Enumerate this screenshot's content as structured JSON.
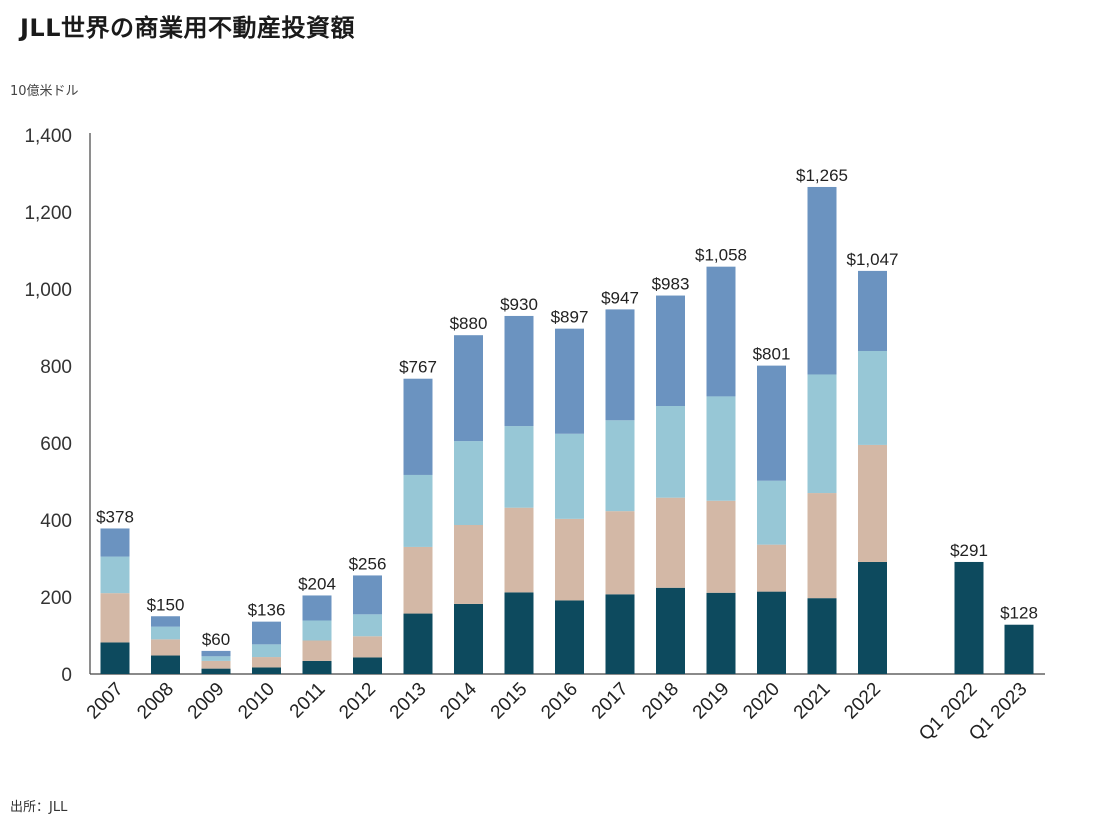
{
  "title": "JLL世界の商業用不動産投資額",
  "unit_label": "10億米ドル",
  "source": "出所：JLL",
  "colors": [
    "#0d4a5e",
    "#d3b8a6",
    "#97c7d6",
    "#6b93c0"
  ],
  "chart_data": {
    "type": "bar",
    "stacked": true,
    "title": "JLL世界の商業用不動産投資額",
    "ylabel": "10億米ドル",
    "ylim": [
      0,
      1400
    ],
    "yticks": [
      0,
      200,
      400,
      600,
      800,
      1000,
      1200,
      1400
    ],
    "ytick_labels": [
      "0",
      "200",
      "400",
      "600",
      "800",
      "1,000",
      "1,200",
      "1,400"
    ],
    "grid": false,
    "legend": "none",
    "categories": [
      "2007",
      "2008",
      "2009",
      "2010",
      "2011",
      "2012",
      "2013",
      "2014",
      "2015",
      "2016",
      "2017",
      "2018",
      "2019",
      "2020",
      "2021",
      "2022",
      "Q1 2022",
      "Q1 2023"
    ],
    "series": [
      {
        "values": [
          82,
          48,
          14,
          17,
          34,
          43,
          157,
          182,
          212,
          191,
          207,
          224,
          211,
          214,
          197,
          291,
          291,
          128
        ]
      },
      {
        "values": [
          128,
          42,
          20,
          27,
          53,
          55,
          173,
          205,
          220,
          212,
          216,
          234,
          239,
          122,
          273,
          304,
          0,
          0
        ]
      },
      {
        "values": [
          95,
          33,
          12,
          33,
          52,
          57,
          187,
          218,
          212,
          221,
          236,
          238,
          271,
          166,
          308,
          244,
          0,
          0
        ]
      },
      {
        "values": [
          73,
          27,
          14,
          59,
          65,
          101,
          250,
          275,
          286,
          273,
          288,
          287,
          337,
          299,
          487,
          208,
          0,
          0
        ]
      }
    ],
    "totals": [
      378,
      150,
      60,
      136,
      204,
      256,
      767,
      880,
      930,
      897,
      947,
      983,
      1058,
      801,
      1265,
      1047,
      291,
      128
    ],
    "total_labels": [
      "$378",
      "$150",
      "$60",
      "$136",
      "$204",
      "$256",
      "$767",
      "$880",
      "$930",
      "$897",
      "$947",
      "$983",
      "$1,058",
      "$801",
      "$1,265",
      "$1,047",
      "$291",
      "$128"
    ]
  }
}
